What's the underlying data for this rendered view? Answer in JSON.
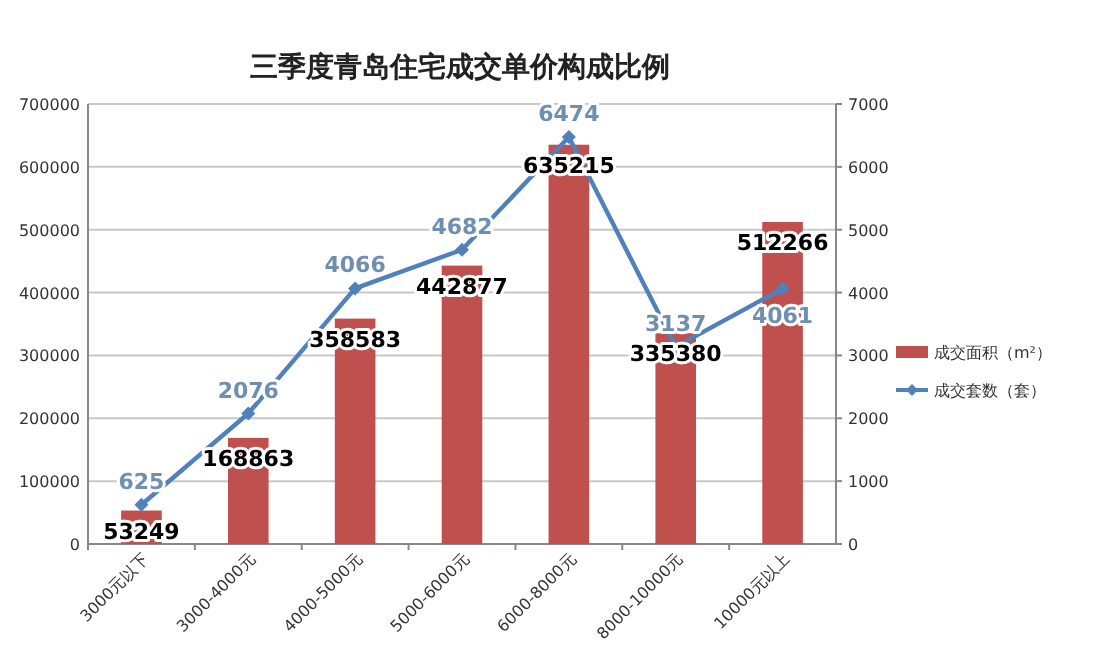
{
  "chart_data": {
    "type": "bar",
    "title": "三季度青岛住宅成交单价构成比例",
    "categories": [
      "3000元以下",
      "3000-4000元",
      "4000-5000元",
      "5000-6000元",
      "6000-8000元",
      "8000-10000元",
      "10000元以上"
    ],
    "series": [
      {
        "name": "成交面积（m²）",
        "color": "#c0504d",
        "values": [
          53249,
          168863,
          358583,
          442877,
          635215,
          335380,
          512266
        ]
      },
      {
        "name": "成交套数（套）",
        "type": "line",
        "axis": "y2",
        "color": "#4f81bd",
        "marker": "diamond",
        "values": [
          625,
          2076,
          4066,
          4682,
          6474,
          3137,
          4061
        ]
      }
    ],
    "ylim": [
      0,
      700000
    ],
    "yticks": [
      0,
      100000,
      200000,
      300000,
      400000,
      500000,
      600000,
      700000
    ],
    "y2lim": [
      0,
      7000
    ],
    "y2ticks": [
      0,
      1000,
      2000,
      3000,
      4000,
      5000,
      6000,
      7000
    ],
    "grid": "y",
    "legend": "right",
    "data_labels": true
  }
}
